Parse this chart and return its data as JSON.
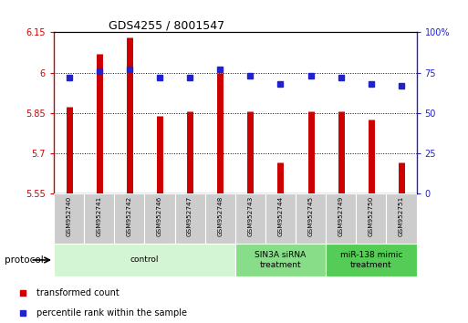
{
  "title": "GDS4255 / 8001547",
  "samples": [
    "GSM952740",
    "GSM952741",
    "GSM952742",
    "GSM952746",
    "GSM952747",
    "GSM952748",
    "GSM952743",
    "GSM952744",
    "GSM952745",
    "GSM952749",
    "GSM952750",
    "GSM952751"
  ],
  "transformed_count": [
    5.875,
    6.07,
    6.13,
    5.84,
    5.855,
    6.0,
    5.855,
    5.665,
    5.855,
    5.855,
    5.825,
    5.665
  ],
  "percentile_rank": [
    72,
    76,
    77,
    72,
    72,
    77,
    73,
    68,
    73,
    72,
    68,
    67
  ],
  "ylim_left": [
    5.55,
    6.15
  ],
  "ylim_right": [
    0,
    100
  ],
  "yticks_left": [
    5.55,
    5.7,
    5.85,
    6.0,
    6.15
  ],
  "yticks_right": [
    0,
    25,
    50,
    75,
    100
  ],
  "ytick_labels_left": [
    "5.55",
    "5.7",
    "5.85",
    "6",
    "6.15"
  ],
  "ytick_labels_right": [
    "0",
    "25",
    "50",
    "75",
    "100%"
  ],
  "bar_color": "#cc0000",
  "dot_color": "#2222cc",
  "groups": [
    {
      "label": "control",
      "start": 0,
      "end": 6,
      "color": "#d4f5d4"
    },
    {
      "label": "SIN3A siRNA\ntreatment",
      "start": 6,
      "end": 9,
      "color": "#88dd88"
    },
    {
      "label": "miR-138 mimic\ntreatment",
      "start": 9,
      "end": 12,
      "color": "#55cc55"
    }
  ],
  "protocol_label": "protocol",
  "legend_items": [
    {
      "label": "transformed count",
      "color": "#cc0000"
    },
    {
      "label": "percentile rank within the sample",
      "color": "#2222cc"
    }
  ],
  "grid_color": "#000000",
  "background_color": "#ffffff",
  "plot_bg_color": "#ffffff",
  "bar_linewidth": 5
}
